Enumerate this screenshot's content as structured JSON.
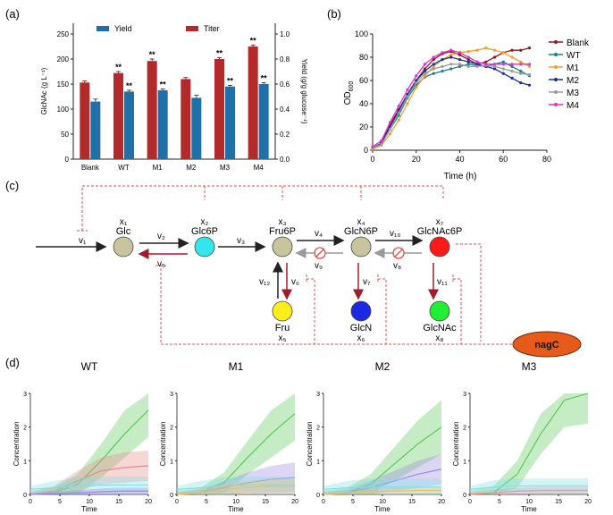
{
  "panels": {
    "a": "(a)",
    "b": "(b)",
    "c": "(c)",
    "d": "(d)"
  },
  "colors": {
    "titer": "#b22a2a",
    "yield": "#1f6fa8",
    "inhibit": "#d9534f",
    "node_grey": "#c8c49b"
  },
  "chart_data": [
    {
      "panel": "a",
      "type": "bar",
      "categories": [
        "Blank",
        "WT",
        "M1",
        "M2",
        "M3",
        "M4"
      ],
      "series": [
        {
          "name": "Titer",
          "axis": "left",
          "values": [
            153,
            172,
            196,
            160,
            200,
            225
          ],
          "errors": [
            3,
            3,
            4,
            3,
            3,
            3
          ]
        },
        {
          "name": "Yield",
          "axis": "right",
          "values": [
            0.46,
            0.54,
            0.55,
            0.49,
            0.58,
            0.6
          ],
          "errors": [
            0.02,
            0.01,
            0.01,
            0.02,
            0.01,
            0.01
          ]
        }
      ],
      "significance": {
        "Titer": [
          "",
          "**",
          "**",
          "",
          "**",
          "**"
        ],
        "Yield": [
          "",
          "**",
          "**",
          "",
          "**",
          "**"
        ]
      },
      "ylabel": "GlcNAc (g L⁻¹)",
      "ylabel_right": "Yield (g/g glucose⁻¹)",
      "ylim": [
        0,
        250
      ],
      "ylim_right": [
        0,
        1.0
      ],
      "yticks": [
        "0",
        "50",
        "100",
        "150",
        "200",
        "250"
      ],
      "yticks_right": [
        "0.0",
        "0.2",
        "0.4",
        "0.6",
        "0.8",
        "1.0"
      ],
      "legend": [
        "Yield",
        "Titer"
      ],
      "legend_position": "top"
    },
    {
      "panel": "b",
      "type": "line",
      "x": [
        0,
        4,
        8,
        12,
        16,
        20,
        24,
        28,
        32,
        36,
        40,
        44,
        48,
        52,
        56,
        60,
        64,
        68,
        72
      ],
      "series": [
        {
          "name": "Blank",
          "color": "#8b1a1a",
          "values": [
            2,
            6,
            22,
            35,
            48,
            60,
            70,
            78,
            83,
            85,
            82,
            78,
            74,
            76,
            80,
            84,
            86,
            86,
            88
          ]
        },
        {
          "name": "WT",
          "color": "#1a7f8e",
          "values": [
            2,
            5,
            18,
            30,
            45,
            56,
            63,
            66,
            68,
            70,
            72,
            74,
            73,
            72,
            74,
            76,
            72,
            68,
            64
          ]
        },
        {
          "name": "M1",
          "color": "#f0a030",
          "values": [
            1,
            4,
            14,
            26,
            40,
            54,
            64,
            72,
            78,
            82,
            84,
            85,
            86,
            88,
            86,
            84,
            80,
            76,
            72
          ]
        },
        {
          "name": "M2",
          "color": "#1f2f9a",
          "values": [
            2,
            6,
            20,
            34,
            48,
            60,
            68,
            74,
            78,
            80,
            78,
            76,
            74,
            72,
            70,
            66,
            62,
            58,
            56
          ]
        },
        {
          "name": "M3",
          "color": "#9a9a9a",
          "values": [
            2,
            5,
            18,
            32,
            46,
            58,
            66,
            70,
            72,
            74,
            74,
            72,
            72,
            73,
            72,
            70,
            68,
            66,
            65
          ]
        },
        {
          "name": "M4",
          "color": "#e030d0",
          "values": [
            3,
            8,
            24,
            38,
            52,
            64,
            74,
            80,
            84,
            86,
            84,
            80,
            76,
            74,
            74,
            74,
            74,
            74,
            74
          ]
        }
      ],
      "xlabel": "Time (h)",
      "ylabel": "OD",
      "ylabel_sub": "600",
      "xlim": [
        0,
        80
      ],
      "ylim": [
        0,
        100
      ],
      "xticks": [
        "0",
        "20",
        "40",
        "60",
        "80"
      ],
      "yticks": [
        "0",
        "20",
        "40",
        "60",
        "80",
        "100"
      ],
      "legend_position": "right"
    },
    {
      "panel": "d",
      "type": "line",
      "subplots": [
        {
          "title": "WT",
          "series": [
            {
              "color": "#5bc85b",
              "values": [
                0,
                0.05,
                0.3,
                1.0,
                1.8,
                2.5
              ],
              "band": [
                0.1,
                0.15,
                0.3,
                0.5,
                0.7,
                0.8
              ]
            },
            {
              "color": "#e88a8a",
              "values": [
                0,
                0.1,
                0.4,
                0.7,
                0.8,
                0.85
              ],
              "band": [
                0.05,
                0.15,
                0.3,
                0.4,
                0.45,
                0.45
              ]
            },
            {
              "color": "#7fe0e8",
              "values": [
                0.15,
                0.2,
                0.25,
                0.28,
                0.28,
                0.28
              ],
              "band": [
                0.1,
                0.2,
                0.25,
                0.25,
                0.25,
                0.25
              ]
            },
            {
              "color": "#9a8ae0",
              "values": [
                0,
                0.02,
                0.05,
                0.08,
                0.1,
                0.1
              ],
              "band": [
                0.02,
                0.05,
                0.08,
                0.1,
                0.1,
                0.1
              ]
            }
          ]
        },
        {
          "title": "M1",
          "series": [
            {
              "color": "#5bc85b",
              "values": [
                0,
                0.05,
                0.35,
                1.1,
                1.8,
                2.4
              ],
              "band": [
                0.1,
                0.15,
                0.3,
                0.5,
                0.7,
                0.8
              ]
            },
            {
              "color": "#9a8ae0",
              "values": [
                0,
                0.05,
                0.2,
                0.35,
                0.45,
                0.5
              ],
              "band": [
                0.05,
                0.1,
                0.2,
                0.3,
                0.4,
                0.45
              ]
            },
            {
              "color": "#7fe0e8",
              "values": [
                0.15,
                0.2,
                0.25,
                0.28,
                0.28,
                0.28
              ],
              "band": [
                0.1,
                0.2,
                0.25,
                0.25,
                0.25,
                0.25
              ]
            },
            {
              "color": "#e8c070",
              "values": [
                0,
                0.05,
                0.15,
                0.2,
                0.25,
                0.25
              ],
              "band": [
                0.05,
                0.1,
                0.15,
                0.2,
                0.2,
                0.2
              ]
            }
          ]
        },
        {
          "title": "M2",
          "series": [
            {
              "color": "#5bc85b",
              "values": [
                0,
                0.05,
                0.3,
                0.9,
                1.5,
                2.0
              ],
              "band": [
                0.1,
                0.15,
                0.3,
                0.5,
                0.7,
                0.8
              ]
            },
            {
              "color": "#9a8ae0",
              "values": [
                0,
                0.05,
                0.2,
                0.4,
                0.6,
                0.75
              ],
              "band": [
                0.05,
                0.1,
                0.2,
                0.3,
                0.4,
                0.45
              ]
            },
            {
              "color": "#7fe0e8",
              "values": [
                0.15,
                0.2,
                0.22,
                0.22,
                0.22,
                0.22
              ],
              "band": [
                0.1,
                0.2,
                0.25,
                0.25,
                0.25,
                0.25
              ]
            },
            {
              "color": "#e8c070",
              "values": [
                0,
                0.03,
                0.08,
                0.1,
                0.12,
                0.12
              ],
              "band": [
                0.03,
                0.06,
                0.1,
                0.1,
                0.1,
                0.1
              ]
            }
          ]
        },
        {
          "title": "M3",
          "series": [
            {
              "color": "#5bc85b",
              "values": [
                0,
                0.05,
                0.6,
                1.8,
                2.8,
                3.0
              ],
              "band": [
                0.1,
                0.2,
                0.4,
                0.6,
                0.8,
                0.9
              ]
            },
            {
              "color": "#e88a8a",
              "values": [
                0,
                0.05,
                0.1,
                0.12,
                0.12,
                0.12
              ],
              "band": [
                0.05,
                0.1,
                0.1,
                0.1,
                0.1,
                0.1
              ]
            },
            {
              "color": "#7fe0e8",
              "values": [
                0.15,
                0.22,
                0.25,
                0.25,
                0.25,
                0.25
              ],
              "band": [
                0.1,
                0.2,
                0.22,
                0.22,
                0.22,
                0.22
              ]
            }
          ]
        }
      ],
      "x": [
        0,
        4,
        8,
        12,
        16,
        20
      ],
      "xlabel": "Time",
      "ylabel": "Concentration",
      "xlim": [
        0,
        20
      ],
      "ylim": [
        0,
        3
      ],
      "xticks": [
        "0",
        "5",
        "10",
        "15",
        "20"
      ],
      "yticks": [
        "0",
        "1",
        "2",
        "3"
      ]
    }
  ],
  "diagram": {
    "nodes": [
      {
        "id": "glc",
        "label": "Glc",
        "var": "x₁",
        "color": "#c8c49b"
      },
      {
        "id": "glc6p",
        "label": "Glc6P",
        "var": "x₂",
        "color": "#33e5ee"
      },
      {
        "id": "fru6p",
        "label": "Fru6P",
        "var": "x₃",
        "color": "#c8c49b"
      },
      {
        "id": "glcn6p",
        "label": "GlcN6P",
        "var": "x₄",
        "color": "#c8c49b"
      },
      {
        "id": "glcnac6p",
        "label": "GlcNAc6P",
        "var": "x₇",
        "color": "#ff1a1a"
      },
      {
        "id": "fru",
        "label": "Fru",
        "var": "x₅",
        "color": "#ffee1a"
      },
      {
        "id": "glcn",
        "label": "GlcN",
        "var": "x₆",
        "color": "#1a2ae0"
      },
      {
        "id": "glcnac",
        "label": "GlcNAc",
        "var": "x₈",
        "color": "#22ee33"
      }
    ],
    "fluxes": [
      "v₁",
      "v₂",
      "v₃",
      "v₄",
      "v₅",
      "v₆",
      "v₇",
      "v₈",
      "v₉",
      "v₁₀",
      "v₁₁",
      "v₁₂"
    ],
    "regulator": "nagC"
  }
}
